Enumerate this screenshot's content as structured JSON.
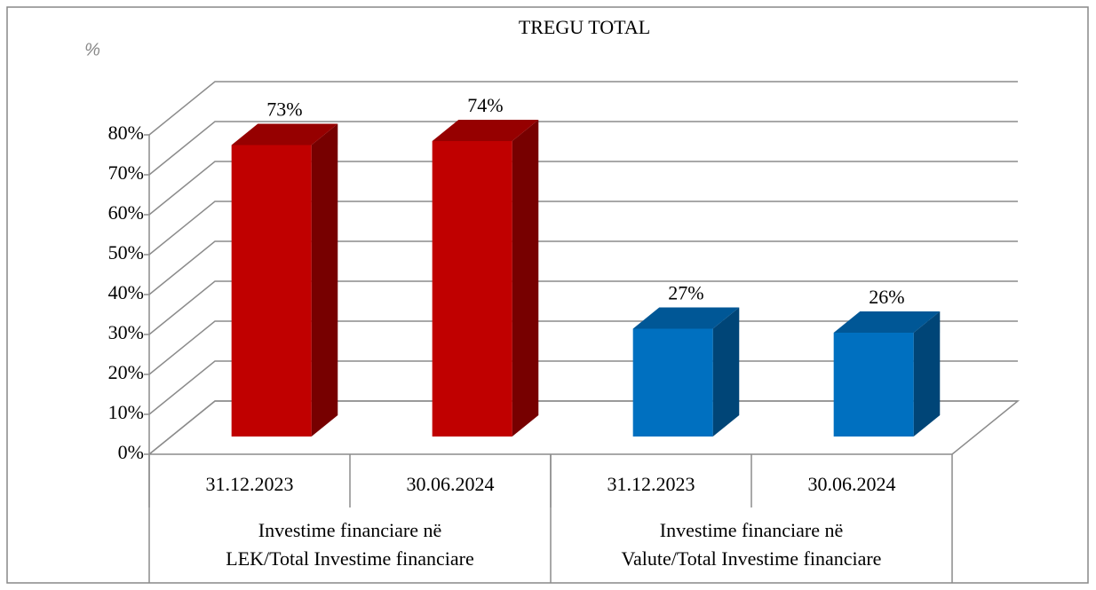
{
  "chart_data": {
    "type": "bar3d",
    "title": "TREGU TOTAL",
    "y_label": "%",
    "categories": [
      "31.12.2023",
      "30.06.2024",
      "31.12.2023",
      "30.06.2024"
    ],
    "groups": [
      [
        "Investime financiare në",
        "LEK/Total Investime financiare"
      ],
      [
        "Investime financiare në",
        "Valute/Total Investime financiare"
      ]
    ],
    "values": [
      73,
      74,
      27,
      26
    ],
    "value_labels": [
      "73%",
      "74%",
      "27%",
      "26%"
    ],
    "colors": [
      "#c00000",
      "#c00000",
      "#0070c0",
      "#0070c0"
    ],
    "ylim": [
      0,
      80
    ],
    "yticks": [
      {
        "value": 0,
        "label": "0%"
      },
      {
        "value": 10,
        "label": "10%"
      },
      {
        "value": 20,
        "label": "20%"
      },
      {
        "value": 30,
        "label": "30%"
      },
      {
        "value": 40,
        "label": "40%"
      },
      {
        "value": 50,
        "label": "50%"
      },
      {
        "value": 60,
        "label": "60%"
      },
      {
        "value": 70,
        "label": "70%"
      },
      {
        "value": 80,
        "label": "80%"
      }
    ],
    "grid": true
  }
}
